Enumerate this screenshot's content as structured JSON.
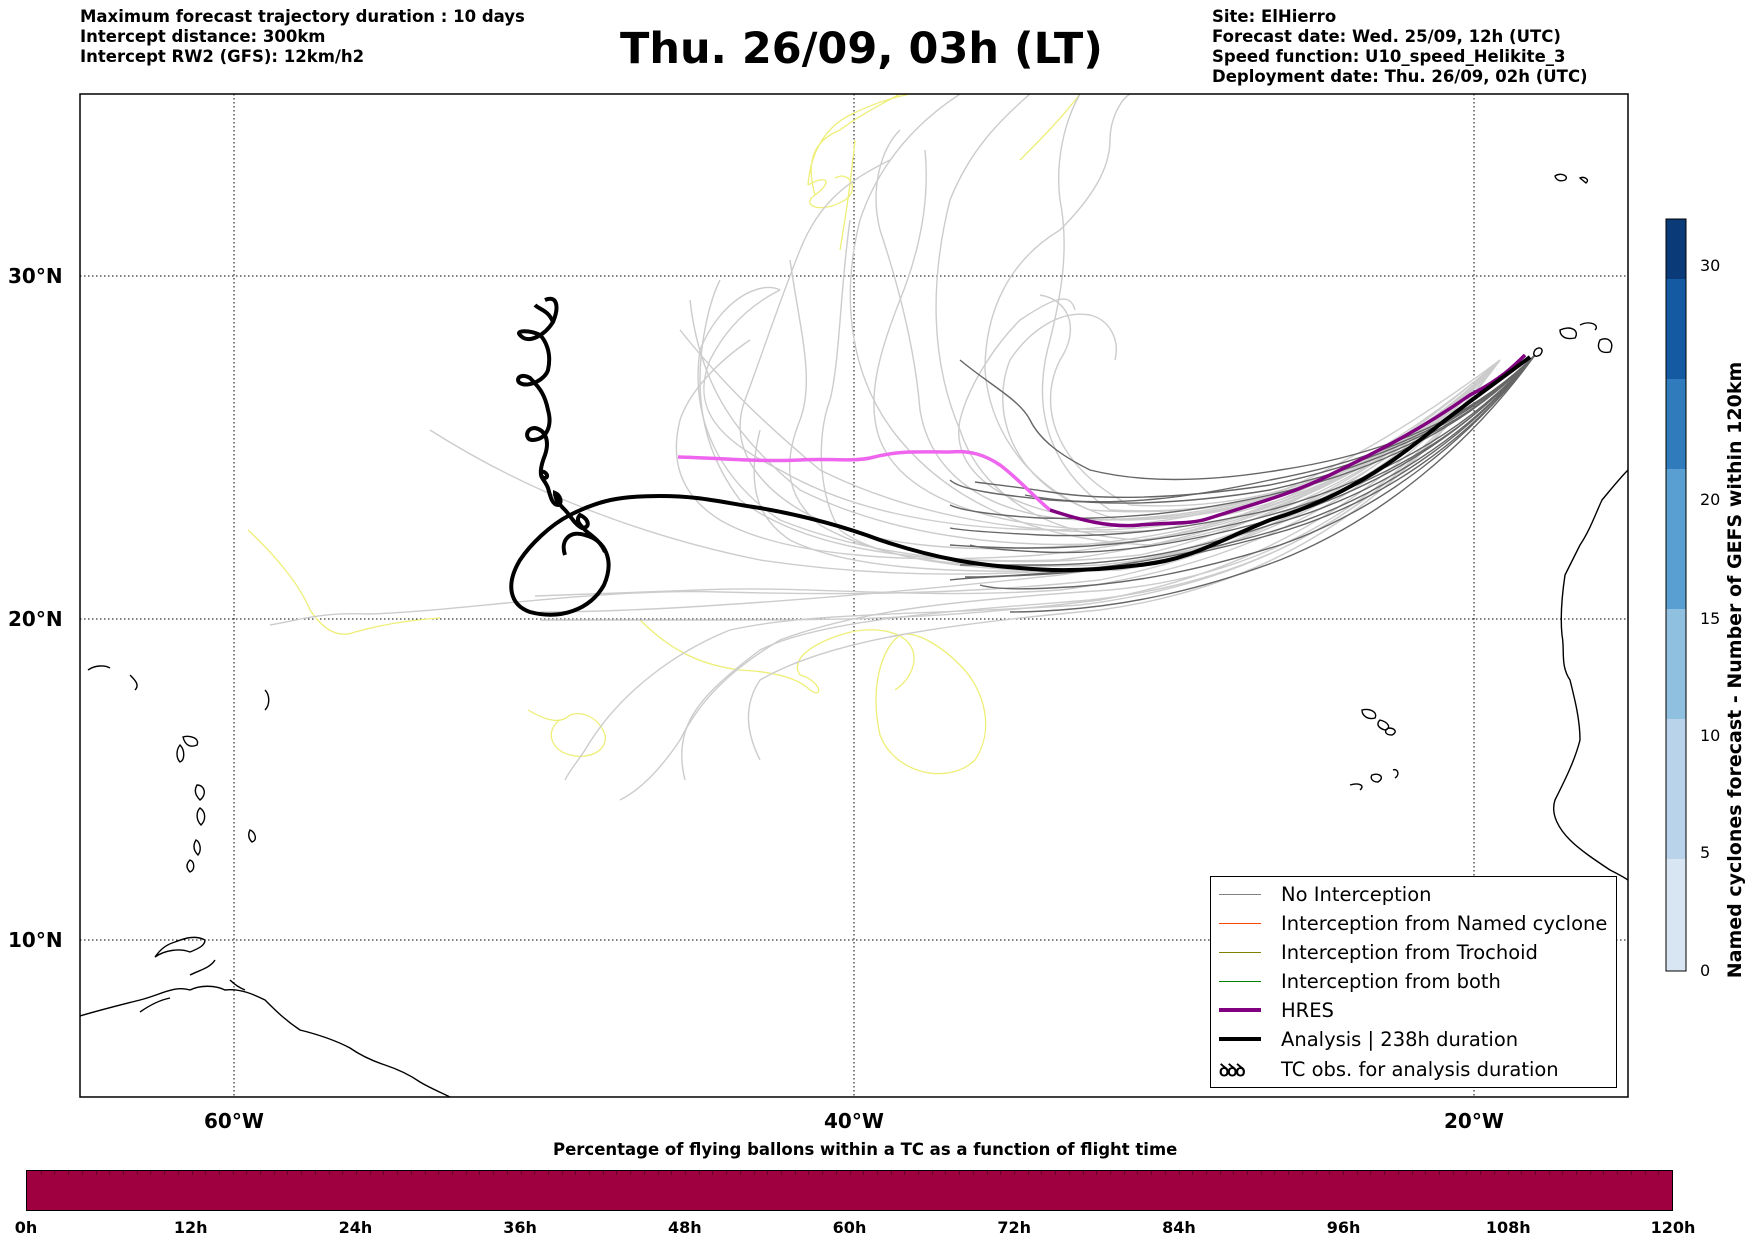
{
  "header": {
    "left": [
      "Maximum forecast trajectory duration : 10 days",
      "Intercept distance: 300km",
      "Intercept RW2 (GFS):  12km/h2"
    ],
    "title": "Thu. 26/09, 03h (LT)",
    "right": [
      "Site: ElHierro",
      "Forecast date: Wed. 25/09, 12h (UTC)",
      "Speed function: U10_speed_Helikite_3",
      "Deployment date: Thu. 26/09, 02h (UTC)"
    ]
  },
  "map": {
    "lat_labels": [
      "30°N",
      "20°N",
      "10°N"
    ],
    "lon_labels": [
      "60°W",
      "40°W",
      "20°W"
    ],
    "colors": {
      "no_interception": "#808080",
      "named_cyclone": "#ff4500",
      "trochoid": "#808000",
      "both": "#008000",
      "hres": "#800080",
      "hres_light": "#ee66ee",
      "analysis": "#000000",
      "ensemble_light": "#cccccc",
      "ensemble_dark": "#666666",
      "cyclone_track": "#eeee77"
    }
  },
  "legend": {
    "items": [
      {
        "label": "No Interception",
        "icon": "line",
        "color": "#808080",
        "width": 1
      },
      {
        "label": "Interception from Named cyclone",
        "icon": "line",
        "color": "#ff4500",
        "width": 1
      },
      {
        "label": "Interception from Trochoid",
        "icon": "line",
        "color": "#808000",
        "width": 1
      },
      {
        "label": "Interception from both",
        "icon": "line",
        "color": "#008000",
        "width": 1
      },
      {
        "label": "HRES",
        "icon": "line",
        "color": "#800080",
        "width": 4
      },
      {
        "label": "Analysis | 238h duration",
        "icon": "line",
        "color": "#000000",
        "width": 4
      },
      {
        "label": "TC obs. for analysis duration",
        "icon": "loops-icon",
        "symbol": "ꝺꝺꝺ"
      }
    ]
  },
  "colorbar": {
    "title": "Named cyclones forecast - Number of GEFS within 120km",
    "ticks": [
      "30",
      "20",
      "15",
      "10",
      "5",
      "0"
    ],
    "colors": [
      "#d8e6f4",
      "#b9d3ea",
      "#8fc0e0",
      "#5a9fd2",
      "#2f7bbb",
      "#135aa3",
      "#0a3a78"
    ]
  },
  "timebar": {
    "title": "Percentage of flying ballons within a TC as a function of flight time",
    "color": "#9e0040",
    "labels": [
      "0h",
      "12h",
      "24h",
      "36h",
      "48h",
      "60h",
      "72h",
      "84h",
      "96h",
      "108h",
      "120h"
    ]
  }
}
